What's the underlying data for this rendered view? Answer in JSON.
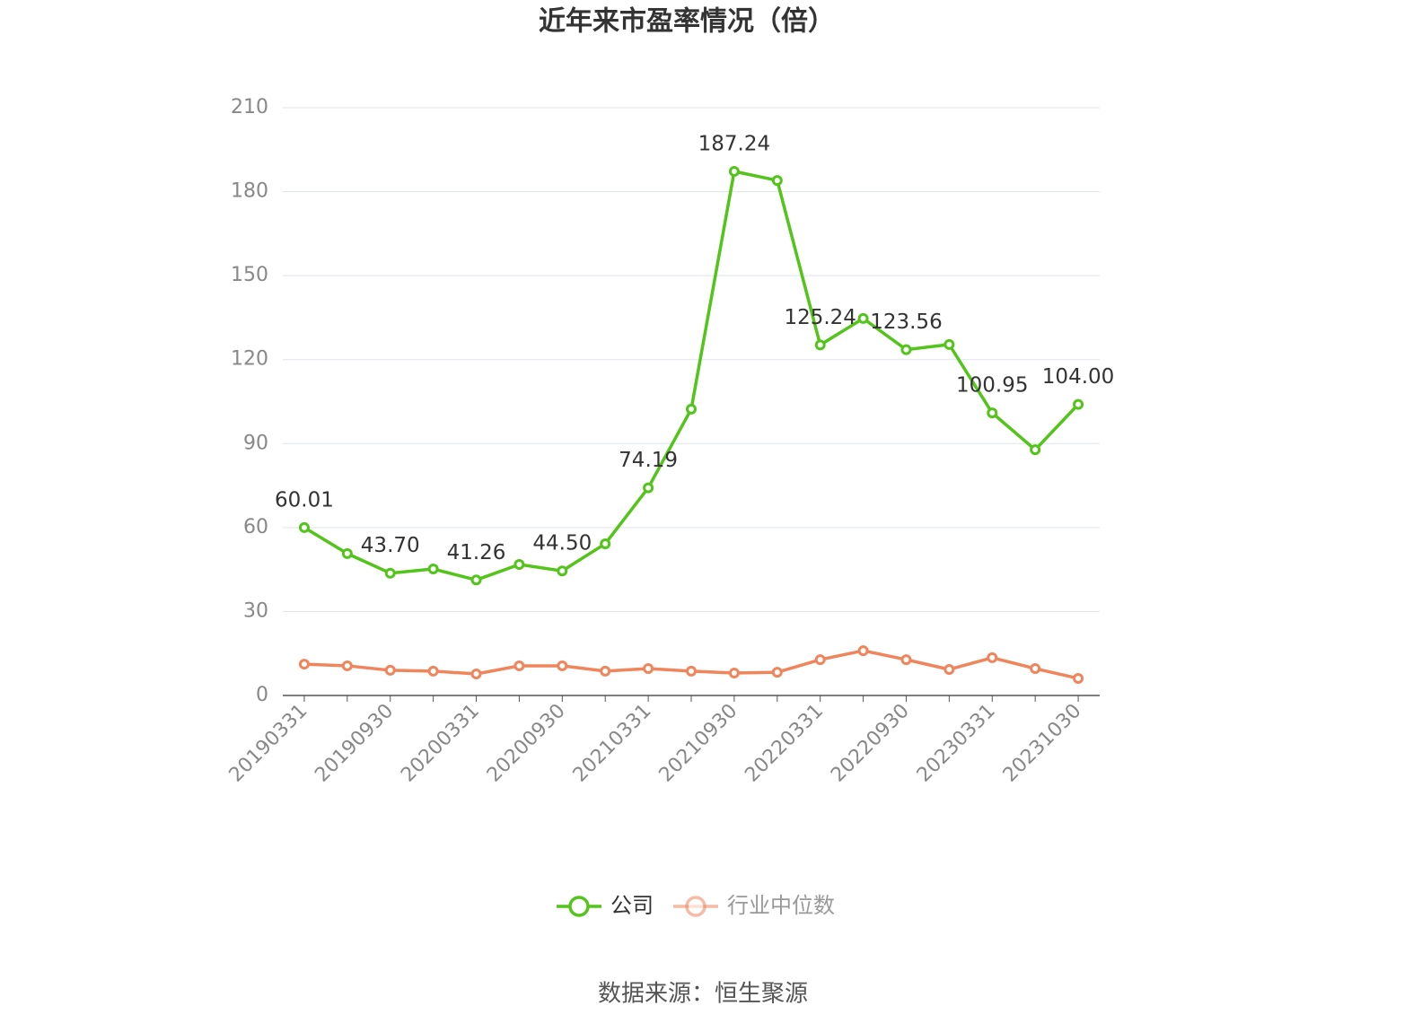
{
  "chart_data": {
    "type": "line",
    "title": "近年来市盈率情况（倍）",
    "source": "数据来源：恒生聚源",
    "categories": [
      "20190331",
      null,
      "20190930",
      null,
      "20200331",
      null,
      "20200930",
      null,
      "20210331",
      null,
      "20210930",
      null,
      "20220331",
      null,
      "20220930",
      null,
      "20230331",
      null,
      "20231030"
    ],
    "series": [
      {
        "name": "公司",
        "color": "#52c41a",
        "values": [
          60.01,
          50.7,
          43.7,
          45.2,
          41.26,
          46.8,
          44.5,
          54.2,
          74.19,
          102.3,
          187.24,
          184.0,
          125.24,
          134.7,
          123.56,
          125.4,
          100.95,
          87.8,
          104.0
        ],
        "value_labels": [
          "60.01",
          null,
          "43.70",
          null,
          "41.26",
          null,
          "44.50",
          null,
          "74.19",
          null,
          "187.24",
          null,
          "125.24",
          null,
          "123.56",
          null,
          "100.95",
          null,
          "104.00"
        ]
      },
      {
        "name": "行业中位数",
        "color": "#f0845a",
        "values": [
          11.2,
          10.6,
          9.0,
          8.7,
          7.7,
          10.6,
          10.6,
          8.7,
          9.6,
          8.7,
          8.0,
          8.3,
          12.8,
          16.0,
          12.8,
          9.3,
          13.5,
          9.6,
          6.1
        ]
      }
    ],
    "ylim": [
      0,
      210
    ],
    "yticks": [
      0,
      30,
      60,
      90,
      120,
      150,
      180,
      210
    ],
    "grid": true,
    "legend": "bottom"
  }
}
